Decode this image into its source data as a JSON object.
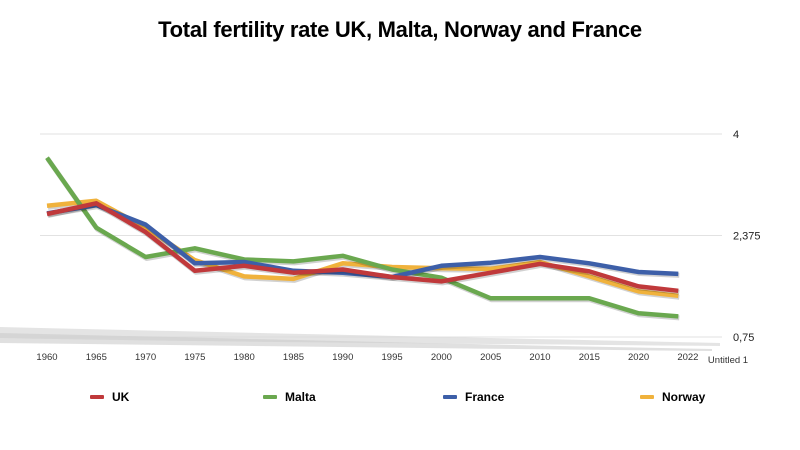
{
  "chart_data": {
    "type": "line",
    "title": "Total fertility rate UK, Malta, Norway and France",
    "xlabel": "",
    "ylabel": "",
    "x": [
      "1960",
      "1965",
      "1970",
      "1975",
      "1980",
      "1985",
      "1990",
      "1995",
      "2000",
      "2005",
      "2010",
      "2015",
      "2020",
      "2022"
    ],
    "extra_category": "Untitled 1",
    "y_ticks": [
      "4",
      "2,375",
      "0,75"
    ],
    "ylim": [
      0.75,
      4
    ],
    "grid": true,
    "legend_position": "bottom",
    "series": [
      {
        "name": "UK",
        "color": "#c0393b",
        "values": [
          2.72,
          2.89,
          2.43,
          1.81,
          1.89,
          1.78,
          1.83,
          1.71,
          1.64,
          1.78,
          1.92,
          1.8,
          1.56,
          1.49
        ]
      },
      {
        "name": "Malta",
        "color": "#6aa84f",
        "values": [
          3.62,
          2.5,
          2.03,
          2.17,
          1.99,
          1.96,
          2.05,
          1.83,
          1.7,
          1.37,
          1.37,
          1.37,
          1.13,
          1.08
        ]
      },
      {
        "name": "France",
        "color": "#3d5fa8",
        "values": [
          2.73,
          2.86,
          2.55,
          1.93,
          1.95,
          1.81,
          1.78,
          1.71,
          1.89,
          1.94,
          2.03,
          1.93,
          1.79,
          1.76
        ]
      },
      {
        "name": "Norway",
        "color": "#f0b23c",
        "values": [
          2.85,
          2.93,
          2.5,
          1.98,
          1.72,
          1.68,
          1.93,
          1.87,
          1.85,
          1.84,
          1.95,
          1.72,
          1.48,
          1.41
        ]
      }
    ]
  }
}
